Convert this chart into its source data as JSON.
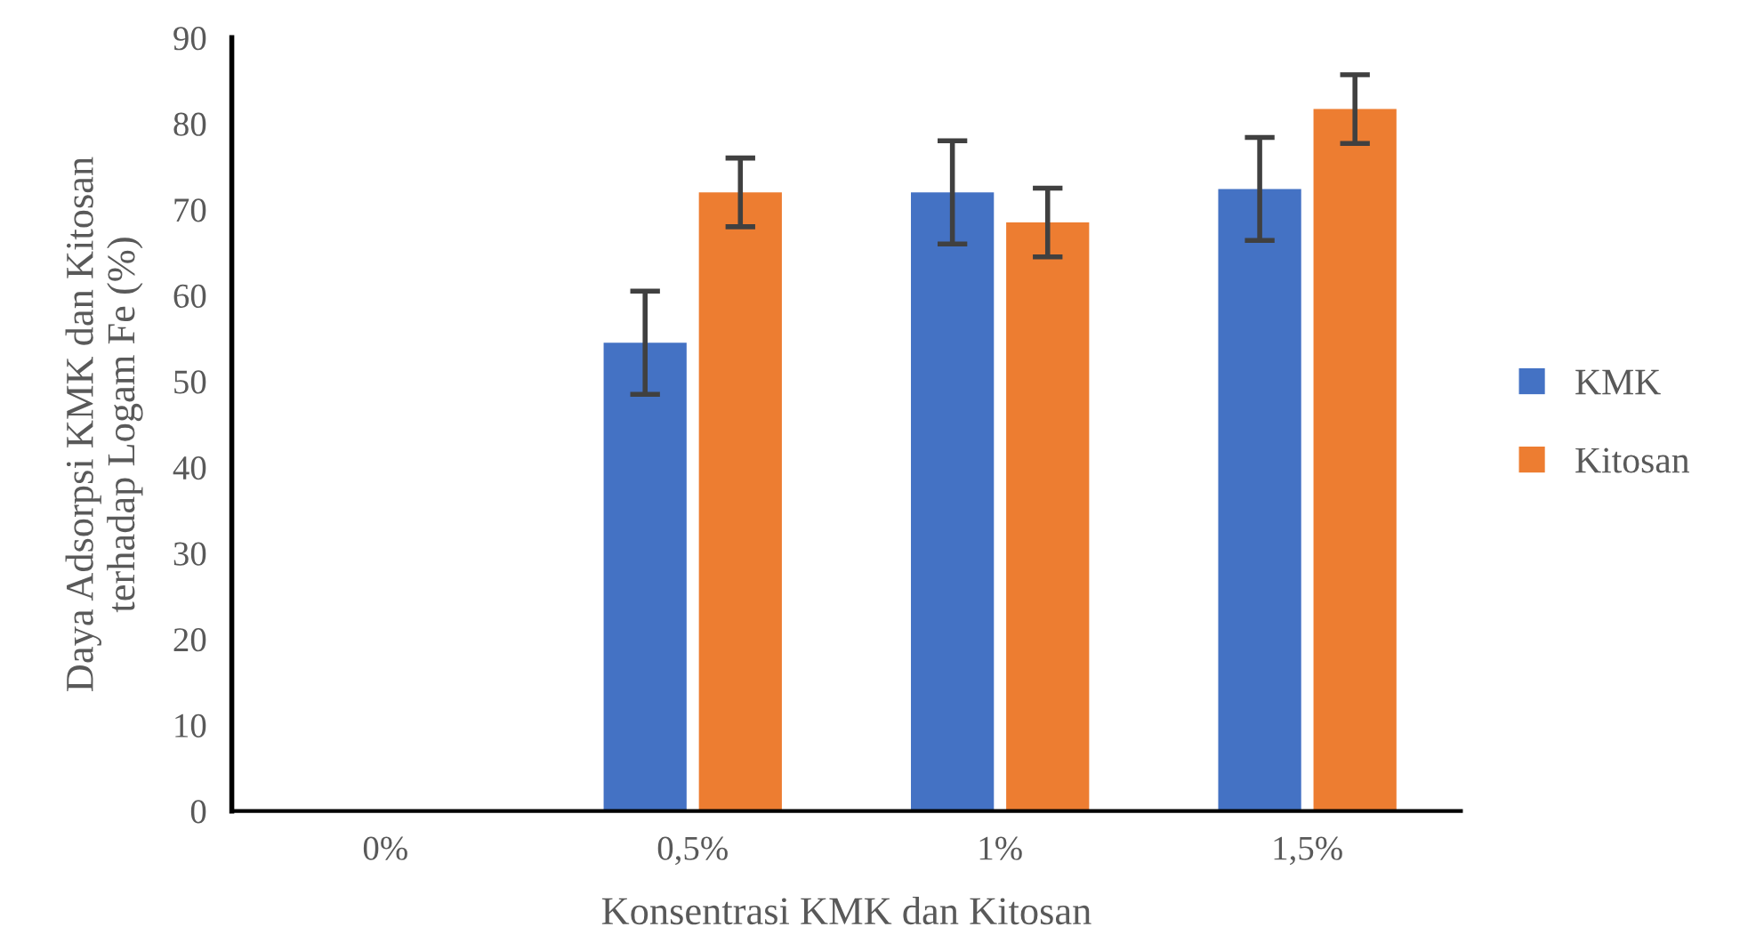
{
  "chart_data": {
    "type": "bar",
    "xlabel": "Konsentrasi KMK dan Kitosan",
    "ylabel": "Daya Adsorpsi KMK dan Kitosan\nterhadap Logam Fe (%)",
    "categories": [
      "0%",
      "0,5%",
      "1%",
      "1,5%"
    ],
    "series": [
      {
        "name": "KMK",
        "color": "#4472c4",
        "values": [
          0,
          54.5,
          72,
          72.4
        ],
        "errors": [
          null,
          6,
          6,
          6
        ]
      },
      {
        "name": "Kitosan",
        "color": "#ed7d31",
        "values": [
          0,
          72,
          68.5,
          81.7
        ],
        "errors": [
          null,
          4,
          4,
          4
        ]
      }
    ],
    "ylim": [
      0,
      90
    ],
    "yticks": [
      0,
      10,
      20,
      30,
      40,
      50,
      60,
      70,
      80,
      90
    ],
    "grid": false,
    "legend": "right"
  }
}
